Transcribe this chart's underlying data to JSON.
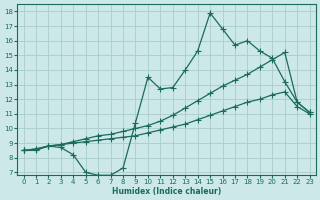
{
  "xlabel": "Humidex (Indice chaleur)",
  "background_color": "#cce8e8",
  "grid_color": "#aacccc",
  "line_color": "#1a6b5e",
  "xlim": [
    -0.5,
    23.5
  ],
  "ylim": [
    6.8,
    18.5
  ],
  "xticks": [
    0,
    1,
    2,
    3,
    4,
    5,
    6,
    7,
    8,
    9,
    10,
    11,
    12,
    13,
    14,
    15,
    16,
    17,
    18,
    19,
    20,
    21,
    22,
    23
  ],
  "yticks": [
    7,
    8,
    9,
    10,
    11,
    12,
    13,
    14,
    15,
    16,
    17,
    18
  ],
  "line1_x": [
    0,
    1,
    2,
    3,
    4,
    5,
    6,
    7,
    8,
    9,
    10,
    11,
    12,
    13,
    14,
    15,
    16,
    17,
    18,
    19,
    20,
    21,
    22,
    23
  ],
  "line1_y": [
    8.5,
    8.5,
    8.8,
    8.7,
    8.2,
    7.0,
    6.8,
    6.8,
    7.3,
    10.4,
    13.5,
    12.7,
    12.8,
    14.0,
    15.3,
    17.9,
    16.8,
    15.7,
    16.0,
    15.3,
    14.8,
    13.2,
    11.8,
    11.1
  ],
  "line2_x": [
    0,
    1,
    2,
    3,
    4,
    5,
    6,
    7,
    8,
    9,
    10,
    11,
    12,
    13,
    14,
    15,
    16,
    17,
    18,
    19,
    20,
    21,
    22,
    23
  ],
  "line2_y": [
    8.5,
    8.6,
    8.8,
    8.9,
    9.1,
    9.3,
    9.5,
    9.6,
    9.8,
    10.0,
    10.2,
    10.5,
    10.9,
    11.4,
    11.9,
    12.4,
    12.9,
    13.3,
    13.7,
    14.2,
    14.7,
    15.2,
    11.8,
    11.1
  ],
  "line3_x": [
    0,
    1,
    2,
    3,
    4,
    5,
    6,
    7,
    8,
    9,
    10,
    11,
    12,
    13,
    14,
    15,
    16,
    17,
    18,
    19,
    20,
    21,
    22,
    23
  ],
  "line3_y": [
    8.5,
    8.6,
    8.8,
    8.9,
    9.0,
    9.1,
    9.2,
    9.3,
    9.4,
    9.5,
    9.7,
    9.9,
    10.1,
    10.3,
    10.6,
    10.9,
    11.2,
    11.5,
    11.8,
    12.0,
    12.3,
    12.5,
    11.5,
    11.0
  ]
}
